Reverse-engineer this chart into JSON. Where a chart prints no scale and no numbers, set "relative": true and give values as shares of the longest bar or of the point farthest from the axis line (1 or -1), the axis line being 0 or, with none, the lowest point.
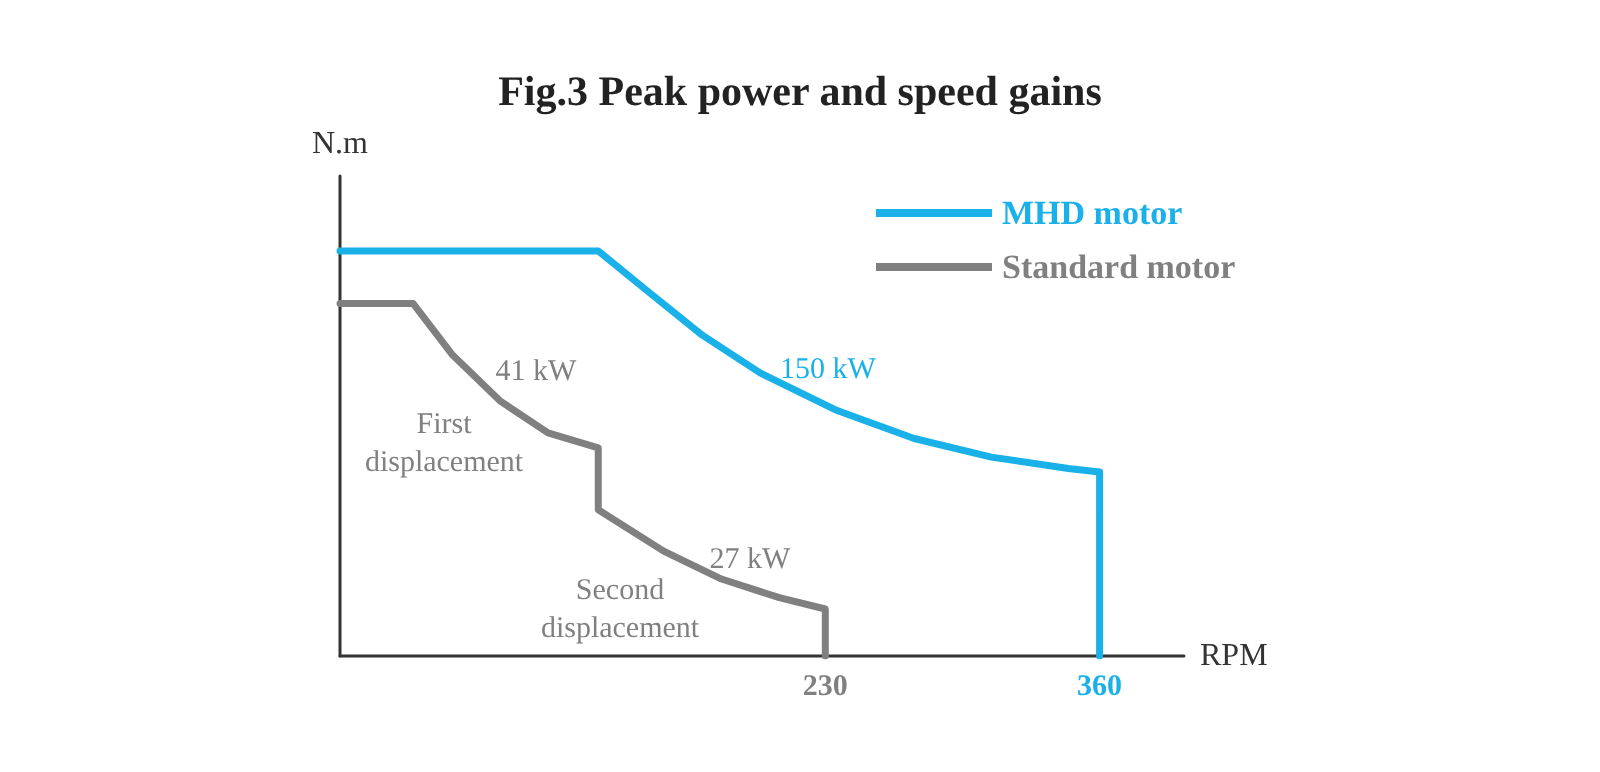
{
  "chart_data": {
    "type": "line",
    "title": "Fig.3 Peak power and speed gains",
    "xlabel": "RPM",
    "ylabel": "N.m",
    "relative": true,
    "xlim": [
      0,
      400
    ],
    "xticks": [
      230,
      360
    ],
    "legend": "top right",
    "marker": "none",
    "line_style": "solid",
    "grid": false,
    "series": [
      {
        "name": "MHD motor",
        "color": "#1ab0e8",
        "x": [
          0,
          122.4,
          144.3,
          171.7,
          199.1,
          235.6,
          272.1,
          308.7,
          345.2,
          360,
          360
        ],
        "values": [
          1,
          1,
          0.907,
          0.792,
          0.699,
          0.606,
          0.537,
          0.491,
          0.463,
          0.454,
          0
        ]
      },
      {
        "name": "Standard motor",
        "color": "#808080",
        "x": [
          0,
          34.7,
          53,
          75.8,
          98.6,
          122.4,
          122.4,
          153.4,
          180.8,
          208.2,
          230,
          230
        ],
        "values": [
          0.87,
          0.87,
          0.745,
          0.63,
          0.551,
          0.514,
          0.361,
          0.259,
          0.19,
          0.144,
          0.116,
          0
        ]
      }
    ],
    "annotations": [
      "41 kW",
      "First\ndisplacement",
      "150 kW",
      "27 kW",
      "Second\ndisplacement"
    ]
  }
}
